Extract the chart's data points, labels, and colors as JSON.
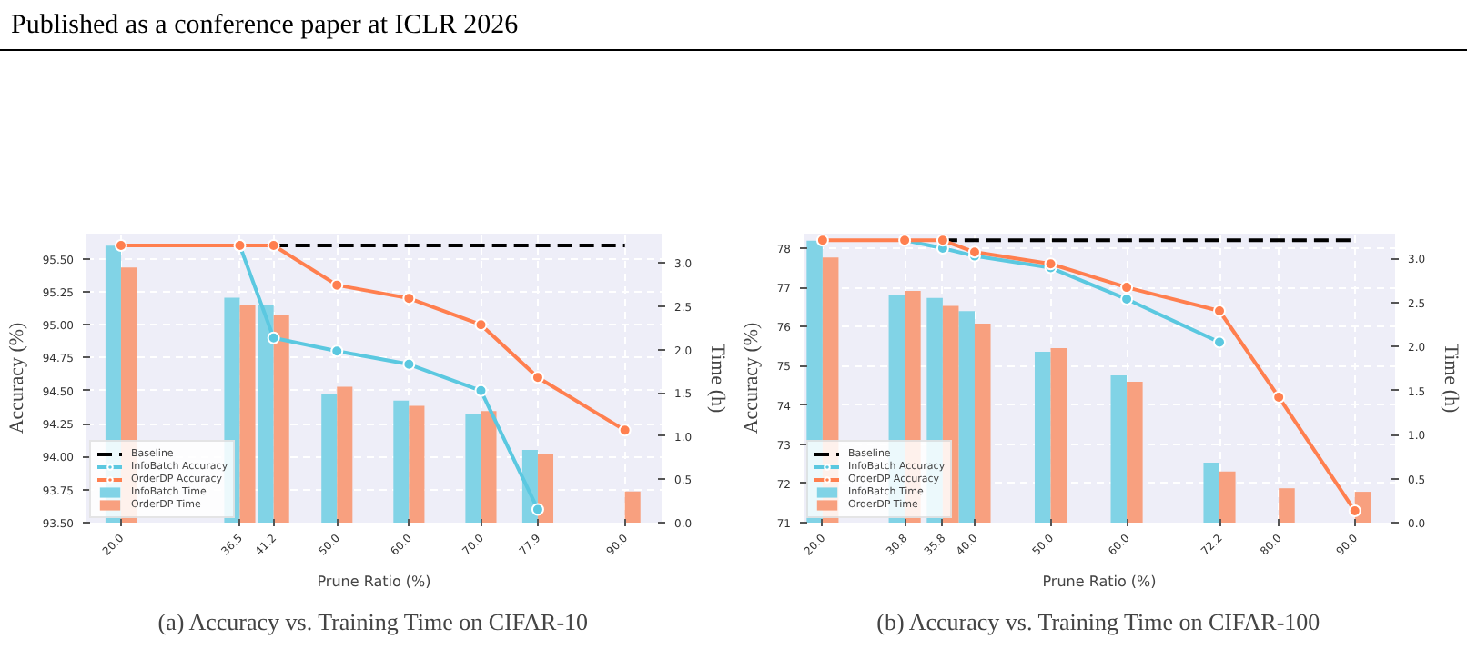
{
  "chart_data": [
    {
      "type": "bar",
      "title": "(a) Accuracy vs. Training Time on CIFAR-10",
      "xlabel": "Prune Ratio (%)",
      "ylabel": "Accuracy (%)",
      "y2label": "Time (h)",
      "annotations": [
        "Published as a conference paper at ICLR 2026"
      ],
      "x": [
        20.0,
        36.5,
        41.2,
        50.0,
        60.0,
        70.0,
        77.9,
        90.0
      ],
      "xlim": [
        15.2,
        95.1
      ],
      "xticks": [
        {
          "value": 20,
          "label": "20.0"
        },
        {
          "value": 36.5,
          "label": "36.5"
        },
        {
          "value": 41.2,
          "label": "41.2"
        },
        {
          "value": 50,
          "label": "50.0"
        },
        {
          "value": 60,
          "label": "60.0"
        },
        {
          "value": 70,
          "label": "70.0"
        },
        {
          "value": 77.9,
          "label": "77.9"
        },
        {
          "value": 90,
          "label": "90.0"
        }
      ],
      "ylim": [
        93.5,
        95.69
      ],
      "yticks": [
        {
          "value": 93.5,
          "label": "93.50"
        },
        {
          "value": 93.75,
          "label": "93.75"
        },
        {
          "value": 94,
          "label": "94.00"
        },
        {
          "value": 94.25,
          "label": "94.25"
        },
        {
          "value": 94.5,
          "label": "94.50"
        },
        {
          "value": 94.75,
          "label": "94.75"
        },
        {
          "value": 95,
          "label": "95.00"
        },
        {
          "value": 95.25,
          "label": "95.25"
        },
        {
          "value": 95.5,
          "label": "95.50"
        }
      ],
      "y2lim": [
        0,
        3.34
      ],
      "y2ticks": [
        {
          "value": 0,
          "label": "0.0"
        },
        {
          "value": 0.5,
          "label": "0.5"
        },
        {
          "value": 1,
          "label": "1.0"
        },
        {
          "value": 1.5,
          "label": "1.5"
        },
        {
          "value": 2,
          "label": "2.0"
        },
        {
          "value": 2.5,
          "label": "2.5"
        },
        {
          "value": 3,
          "label": "3.0"
        }
      ],
      "grid": true,
      "legend": "bottom left",
      "marker": "circle",
      "series": [
        {
          "name": "Baseline",
          "type": "line",
          "color": "#000000",
          "line_style": "dashed",
          "marker": "none",
          "x": [
            41.2,
            90.0
          ],
          "values": [
            95.6,
            95.6
          ]
        },
        {
          "name": "InfoBatch Accuracy",
          "type": "line",
          "color": "#5bc8e0",
          "values": [
            null,
            95.6,
            94.9,
            94.8,
            94.7,
            94.5,
            93.6,
            null
          ]
        },
        {
          "name": "OrderDP Accuracy",
          "type": "line",
          "color": "#ff7f4f",
          "values": [
            95.6,
            95.6,
            95.6,
            95.3,
            95.2,
            95.0,
            94.6,
            94.2
          ]
        },
        {
          "name": "InfoBatch Time",
          "axis": "y2",
          "color": "#81d3e6",
          "values": [
            3.2,
            2.6,
            2.51,
            1.49,
            1.41,
            1.25,
            0.84,
            null
          ]
        },
        {
          "name": "OrderDP Time",
          "axis": "y2",
          "color": "#f8a07f",
          "values": [
            2.95,
            2.52,
            2.4,
            1.57,
            1.35,
            1.29,
            0.79,
            0.36
          ]
        }
      ]
    },
    {
      "type": "bar",
      "title": "(b) Accuracy vs. Training Time on CIFAR-100",
      "xlabel": "Prune Ratio (%)",
      "ylabel": "Accuracy (%)",
      "y2label": "Time (h)",
      "x": [
        20.0,
        30.8,
        35.8,
        40.0,
        50.0,
        60.0,
        72.2,
        80.0,
        90.0
      ],
      "xlim": [
        17.5,
        95.3
      ],
      "xticks": [
        {
          "value": 20,
          "label": "20.0"
        },
        {
          "value": 30.8,
          "label": "30.8"
        },
        {
          "value": 35.8,
          "label": "35.8"
        },
        {
          "value": 40,
          "label": "40.0"
        },
        {
          "value": 50,
          "label": "50.0"
        },
        {
          "value": 60,
          "label": "60.0"
        },
        {
          "value": 72.2,
          "label": "72.2"
        },
        {
          "value": 80,
          "label": "80.0"
        },
        {
          "value": 90,
          "label": "90.0"
        }
      ],
      "ylim": [
        71,
        78.37
      ],
      "yticks": [
        71,
        72,
        73,
        74,
        75,
        76,
        77,
        78
      ],
      "y2lim": [
        0,
        3.28
      ],
      "y2ticks": [
        {
          "value": 0,
          "label": "0.0"
        },
        {
          "value": 0.5,
          "label": "0.5"
        },
        {
          "value": 1,
          "label": "1.0"
        },
        {
          "value": 1.5,
          "label": "1.5"
        },
        {
          "value": 2,
          "label": "2.0"
        },
        {
          "value": 2.5,
          "label": "2.5"
        },
        {
          "value": 3,
          "label": "3.0"
        }
      ],
      "grid": true,
      "legend": "bottom left",
      "marker": "circle",
      "series": [
        {
          "name": "Baseline",
          "type": "line",
          "color": "#000000",
          "line_style": "dashed",
          "marker": "none",
          "x": [
            35.8,
            90.0
          ],
          "values": [
            78.2,
            78.2
          ]
        },
        {
          "name": "InfoBatch Accuracy",
          "type": "line",
          "color": "#5bc8e0",
          "values": [
            null,
            78.2,
            78.0,
            77.8,
            77.5,
            76.7,
            75.6,
            null,
            null
          ]
        },
        {
          "name": "OrderDP Accuracy",
          "type": "line",
          "color": "#ff7f4f",
          "values": [
            78.2,
            78.2,
            78.2,
            77.9,
            77.6,
            77.0,
            76.4,
            74.2,
            71.3
          ]
        },
        {
          "name": "InfoBatch Time",
          "axis": "y2",
          "color": "#81d3e6",
          "values": [
            3.2,
            2.59,
            2.55,
            2.4,
            1.94,
            1.67,
            0.68,
            null,
            null
          ]
        },
        {
          "name": "OrderDP Time",
          "axis": "y2",
          "color": "#f8a07f",
          "values": [
            3.01,
            2.63,
            2.46,
            2.26,
            1.98,
            1.6,
            0.58,
            0.39,
            0.35
          ]
        }
      ]
    }
  ]
}
